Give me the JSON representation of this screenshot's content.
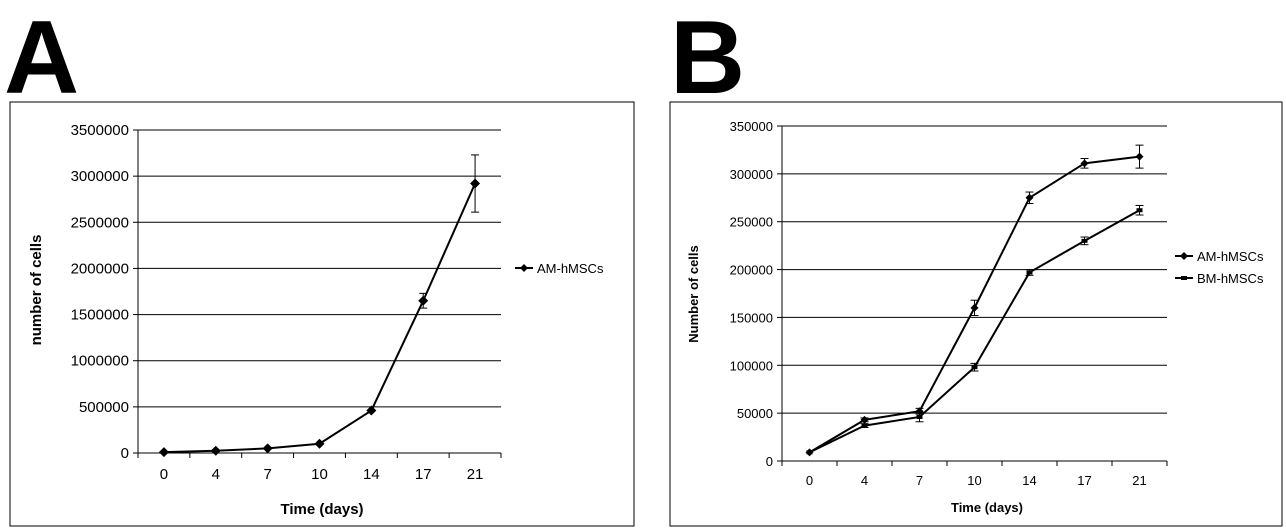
{
  "panels": {
    "a_letter": "A",
    "b_letter": "B"
  },
  "chart_data": [
    {
      "id": "A",
      "type": "line",
      "xlabel": "Time (days)",
      "ylabel": "number of cells",
      "categories": [
        "0",
        "4",
        "7",
        "10",
        "14",
        "17",
        "21"
      ],
      "ylim": [
        0,
        3500000
      ],
      "yticks": [
        "0",
        "500000",
        "1000000",
        "1500000",
        "2000000",
        "2500000",
        "3000000",
        "3500000"
      ],
      "grid": true,
      "legend": "right",
      "series": [
        {
          "name": "AM-hMSCs",
          "marker": "diamond",
          "values": [
            10000,
            25000,
            50000,
            100000,
            460000,
            1650000,
            2920000
          ],
          "errors": [
            0,
            0,
            0,
            0,
            0,
            80000,
            310000
          ]
        }
      ]
    },
    {
      "id": "B",
      "type": "line",
      "xlabel": "Time (days)",
      "ylabel": "Number of cells",
      "categories": [
        "0",
        "4",
        "7",
        "10",
        "14",
        "17",
        "21"
      ],
      "ylim": [
        0,
        350000
      ],
      "yticks": [
        "0",
        "50000",
        "100000",
        "150000",
        "200000",
        "250000",
        "300000",
        "350000"
      ],
      "grid": true,
      "legend": "right",
      "series": [
        {
          "name": "AM-hMSCs",
          "marker": "diamond",
          "values": [
            9000,
            43000,
            52000,
            160000,
            275000,
            311000,
            318000
          ],
          "errors": [
            0,
            2000,
            3000,
            8000,
            6000,
            5000,
            12000
          ]
        },
        {
          "name": "BM-hMSCs",
          "marker": "bar",
          "values": [
            9000,
            37000,
            46000,
            98000,
            197000,
            230000,
            262000
          ],
          "errors": [
            0,
            2000,
            5000,
            4000,
            3000,
            4000,
            5000
          ]
        }
      ]
    }
  ]
}
